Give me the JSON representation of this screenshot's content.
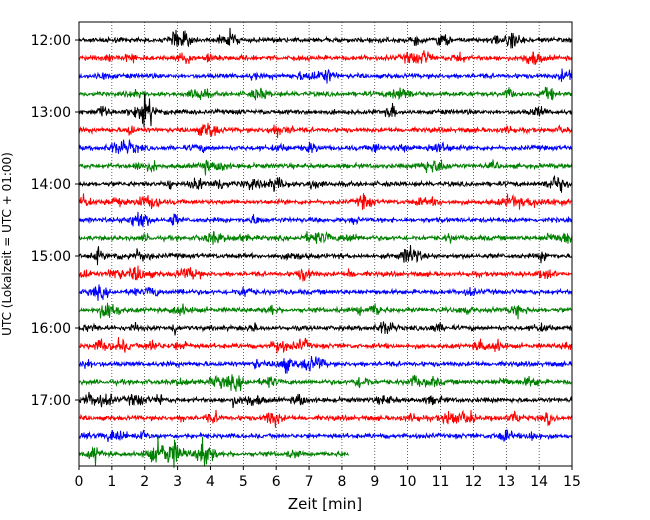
{
  "chart_data": {
    "type": "line",
    "title": "",
    "xlabel": "Zeit  [min]",
    "ylabel": "UTC (Lokalzeit = UTC + 01:00)",
    "xlim": [
      0,
      15
    ],
    "x_ticks": [
      "0",
      "1",
      "2",
      "3",
      "4",
      "5",
      "6",
      "7",
      "8",
      "9",
      "10",
      "11",
      "12",
      "13",
      "14",
      "15"
    ],
    "y_ticks": [
      "12:00",
      "13:00",
      "14:00",
      "15:00",
      "16:00",
      "17:00"
    ],
    "grid": "vertical dotted",
    "trace_interval_minutes": 15,
    "colors": [
      "#000000",
      "#ff0000",
      "#0000ff",
      "#008000"
    ],
    "series": [
      {
        "start": "12:00",
        "color": "#000000",
        "x_end": 15
      },
      {
        "start": "12:15",
        "color": "#ff0000",
        "x_end": 15
      },
      {
        "start": "12:30",
        "color": "#0000ff",
        "x_end": 15
      },
      {
        "start": "12:45",
        "color": "#008000",
        "x_end": 15
      },
      {
        "start": "13:00",
        "color": "#000000",
        "x_end": 15
      },
      {
        "start": "13:15",
        "color": "#ff0000",
        "x_end": 15
      },
      {
        "start": "13:30",
        "color": "#0000ff",
        "x_end": 15
      },
      {
        "start": "13:45",
        "color": "#008000",
        "x_end": 15
      },
      {
        "start": "14:00",
        "color": "#000000",
        "x_end": 15
      },
      {
        "start": "14:15",
        "color": "#ff0000",
        "x_end": 15
      },
      {
        "start": "14:30",
        "color": "#0000ff",
        "x_end": 15
      },
      {
        "start": "14:45",
        "color": "#008000",
        "x_end": 15
      },
      {
        "start": "15:00",
        "color": "#000000",
        "x_end": 15
      },
      {
        "start": "15:15",
        "color": "#ff0000",
        "x_end": 15
      },
      {
        "start": "15:30",
        "color": "#0000ff",
        "x_end": 15
      },
      {
        "start": "15:45",
        "color": "#008000",
        "x_end": 15
      },
      {
        "start": "16:00",
        "color": "#000000",
        "x_end": 15
      },
      {
        "start": "16:15",
        "color": "#ff0000",
        "x_end": 15
      },
      {
        "start": "16:30",
        "color": "#0000ff",
        "x_end": 15
      },
      {
        "start": "16:45",
        "color": "#008000",
        "x_end": 15
      },
      {
        "start": "17:00",
        "color": "#000000",
        "x_end": 15
      },
      {
        "start": "17:15",
        "color": "#ff0000",
        "x_end": 15
      },
      {
        "start": "17:30",
        "color": "#0000ff",
        "x_end": 15
      },
      {
        "start": "17:45",
        "color": "#008000",
        "x_end": 8.2
      }
    ]
  }
}
